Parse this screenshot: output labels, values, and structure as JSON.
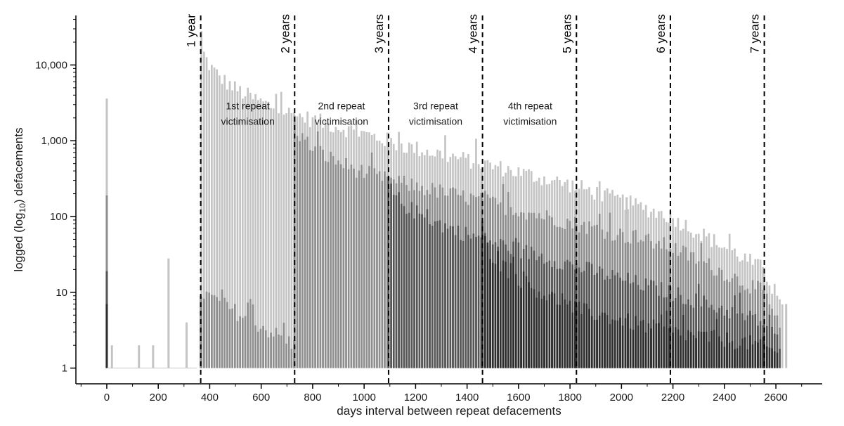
{
  "chart_data": {
    "type": "bar",
    "title": "",
    "xlabel": "days interval between repeat defacements",
    "ylabel_parts": {
      "before": "logged (log",
      "sub": "10",
      "after": ") defacements"
    },
    "xlim": [
      -120,
      2780
    ],
    "ylim": [
      0.62,
      45000
    ],
    "yscale": "log",
    "x_ticks": [
      0,
      200,
      400,
      600,
      800,
      1000,
      1200,
      1400,
      1600,
      1800,
      2000,
      2200,
      2400,
      2600
    ],
    "y_ticks": [
      {
        "value": 1,
        "label": "1"
      },
      {
        "value": 10,
        "label": "10"
      },
      {
        "value": 100,
        "label": "100"
      },
      {
        "value": 1000,
        "label": "1,000"
      },
      {
        "value": 10000,
        "label": "10,000"
      }
    ],
    "bin_width_days": 10,
    "colors": {
      "light": "#c4c4c4",
      "medium": "#8e8e8e",
      "dark": "#555555",
      "darkest": "#2e2e2e",
      "year_line": "#000000"
    },
    "year_markers": [
      {
        "x": 365,
        "label": "1 year"
      },
      {
        "x": 730,
        "label": "2 years"
      },
      {
        "x": 1095,
        "label": "3 years"
      },
      {
        "x": 1460,
        "label": "4 years"
      },
      {
        "x": 1825,
        "label": "5 years"
      },
      {
        "x": 2190,
        "label": "6 years"
      },
      {
        "x": 2555,
        "label": "7 years"
      }
    ],
    "zone_annotations": [
      {
        "x_center": 548,
        "value": 2600,
        "lines": [
          "1st repeat",
          "victimisation"
        ]
      },
      {
        "x_center": 912,
        "value": 2600,
        "lines": [
          "2nd repeat",
          "victimisation"
        ]
      },
      {
        "x_center": 1278,
        "value": 2600,
        "lines": [
          "3rd repeat",
          "victimisation"
        ]
      },
      {
        "x_center": 1645,
        "value": 2600,
        "lines": [
          "4th repeat",
          "victimisation"
        ]
      }
    ],
    "series": [
      {
        "shade": "light",
        "segments": [
          {
            "x_start": 368,
            "x_end": 730,
            "v_start": 26000,
            "v_end": 2200,
            "curve": 2.6
          },
          {
            "x_start": 730,
            "x_end": 1095,
            "v_start": 2200,
            "v_end": 1000,
            "curve": 1.0
          },
          {
            "x_start": 1095,
            "x_end": 1460,
            "v_start": 950,
            "v_end": 500,
            "curve": 1.0
          },
          {
            "x_start": 1460,
            "x_end": 1825,
            "v_start": 500,
            "v_end": 250,
            "curve": 1.0
          },
          {
            "x_start": 1825,
            "x_end": 2190,
            "v_start": 250,
            "v_end": 100,
            "curve": 1.0
          },
          {
            "x_start": 2190,
            "x_end": 2555,
            "v_start": 100,
            "v_end": 20,
            "curve": 1.0
          },
          {
            "x_start": 2555,
            "x_end": 2630,
            "v_start": 20,
            "v_end": 5,
            "curve": 1.0
          }
        ],
        "points": [
          {
            "x": 0,
            "v": 3600
          },
          {
            "x": 240,
            "v": 28
          },
          {
            "x": 310,
            "v": 4
          },
          {
            "x": 125,
            "v": 2
          },
          {
            "x": 180,
            "v": 2
          },
          {
            "x": 20,
            "v": 2
          },
          {
            "x": 2640,
            "v": 7
          },
          {
            "x": 2020,
            "v": 180
          }
        ]
      },
      {
        "shade": "medium",
        "segments": [
          {
            "x_start": 368,
            "x_end": 730,
            "v_start": 10,
            "v_end": 2,
            "curve": 1.0
          },
          {
            "x_start": 730,
            "x_end": 1095,
            "v_start": 2000,
            "v_end": 300,
            "curve": 2.2
          },
          {
            "x_start": 1095,
            "x_end": 1460,
            "v_start": 300,
            "v_end": 160,
            "curve": 1.0
          },
          {
            "x_start": 1460,
            "x_end": 1825,
            "v_start": 160,
            "v_end": 80,
            "curve": 1.0
          },
          {
            "x_start": 1825,
            "x_end": 2190,
            "v_start": 80,
            "v_end": 40,
            "curve": 1.0
          },
          {
            "x_start": 2190,
            "x_end": 2555,
            "v_start": 40,
            "v_end": 10,
            "curve": 1.0
          },
          {
            "x_start": 2555,
            "x_end": 2620,
            "v_start": 10,
            "v_end": 3,
            "curve": 1.0
          }
        ],
        "points": [
          {
            "x": 0,
            "v": 190
          },
          {
            "x": 365,
            "v": 9
          }
        ]
      },
      {
        "shade": "dark",
        "segments": [
          {
            "x_start": 1095,
            "x_end": 1460,
            "v_start": 300,
            "v_end": 50,
            "curve": 2.0
          },
          {
            "x_start": 1460,
            "x_end": 1825,
            "v_start": 50,
            "v_end": 22,
            "curve": 1.0
          },
          {
            "x_start": 1825,
            "x_end": 2190,
            "v_start": 22,
            "v_end": 10,
            "curve": 1.0
          },
          {
            "x_start": 2190,
            "x_end": 2555,
            "v_start": 10,
            "v_end": 4,
            "curve": 1.0
          },
          {
            "x_start": 2555,
            "x_end": 2620,
            "v_start": 4,
            "v_end": 2,
            "curve": 1.0
          }
        ],
        "points": [
          {
            "x": 0,
            "v": 19
          }
        ]
      },
      {
        "shade": "darkest",
        "segments": [
          {
            "x_start": 1460,
            "x_end": 1825,
            "v_start": 70,
            "v_end": 6,
            "curve": 2.0
          },
          {
            "x_start": 1825,
            "x_end": 2190,
            "v_start": 6,
            "v_end": 3,
            "curve": 1.0
          },
          {
            "x_start": 2190,
            "x_end": 2555,
            "v_start": 3,
            "v_end": 2,
            "curve": 1.0
          },
          {
            "x_start": 2555,
            "x_end": 2610,
            "v_start": 2,
            "v_end": 1.5,
            "curve": 1.0
          }
        ],
        "points": [
          {
            "x": 0,
            "v": 7
          }
        ]
      }
    ]
  }
}
